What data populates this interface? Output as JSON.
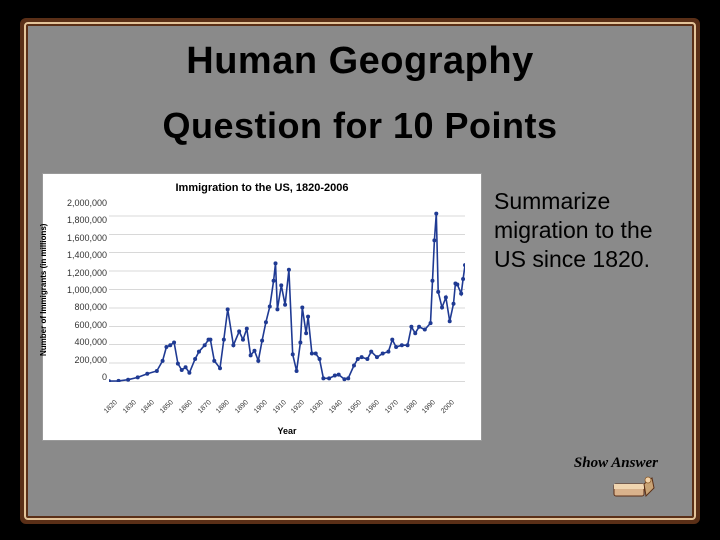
{
  "title": "Human Geography",
  "subtitle": "Question for 10 Points",
  "question": "Summarize migration to the US since 1820.",
  "show_answer_label": "Show Answer",
  "chart": {
    "type": "line",
    "title": "Immigration to the US, 1820-2006",
    "y_axis_title": "Number of Immigrants (in millions)",
    "x_axis_title": "Year",
    "ylim": [
      0,
      2000000
    ],
    "ytick_step": 200000,
    "y_ticks": [
      "2,000,000",
      "1,800,000",
      "1,600,000",
      "1,400,000",
      "1,200,000",
      "1,000,000",
      "800,000",
      "600,000",
      "400,000",
      "200,000",
      "0"
    ],
    "x_ticks": [
      "1820",
      "1830",
      "1840",
      "1850",
      "1860",
      "1870",
      "1880",
      "1890",
      "1900",
      "1910",
      "1920",
      "1930",
      "1940",
      "1950",
      "1960",
      "1970",
      "1980",
      "1990",
      "2000"
    ],
    "line_color": "#1f3a93",
    "line_width": 1.6,
    "marker_color": "#1f3a93",
    "marker_size": 2,
    "background_color": "#ffffff",
    "grid_color": "#d8d8d8",
    "series": [
      {
        "x": 1820,
        "y": 10000
      },
      {
        "x": 1825,
        "y": 12000
      },
      {
        "x": 1830,
        "y": 25000
      },
      {
        "x": 1835,
        "y": 50000
      },
      {
        "x": 1840,
        "y": 90000
      },
      {
        "x": 1845,
        "y": 120000
      },
      {
        "x": 1848,
        "y": 230000
      },
      {
        "x": 1850,
        "y": 380000
      },
      {
        "x": 1852,
        "y": 400000
      },
      {
        "x": 1854,
        "y": 430000
      },
      {
        "x": 1856,
        "y": 200000
      },
      {
        "x": 1858,
        "y": 130000
      },
      {
        "x": 1860,
        "y": 160000
      },
      {
        "x": 1862,
        "y": 100000
      },
      {
        "x": 1865,
        "y": 250000
      },
      {
        "x": 1867,
        "y": 330000
      },
      {
        "x": 1870,
        "y": 400000
      },
      {
        "x": 1872,
        "y": 460000
      },
      {
        "x": 1873,
        "y": 460000
      },
      {
        "x": 1875,
        "y": 230000
      },
      {
        "x": 1878,
        "y": 150000
      },
      {
        "x": 1880,
        "y": 460000
      },
      {
        "x": 1882,
        "y": 790000
      },
      {
        "x": 1885,
        "y": 400000
      },
      {
        "x": 1888,
        "y": 550000
      },
      {
        "x": 1890,
        "y": 460000
      },
      {
        "x": 1892,
        "y": 580000
      },
      {
        "x": 1894,
        "y": 290000
      },
      {
        "x": 1896,
        "y": 340000
      },
      {
        "x": 1898,
        "y": 230000
      },
      {
        "x": 1900,
        "y": 450000
      },
      {
        "x": 1902,
        "y": 650000
      },
      {
        "x": 1904,
        "y": 820000
      },
      {
        "x": 1906,
        "y": 1100000
      },
      {
        "x": 1907,
        "y": 1290000
      },
      {
        "x": 1908,
        "y": 790000
      },
      {
        "x": 1910,
        "y": 1050000
      },
      {
        "x": 1912,
        "y": 840000
      },
      {
        "x": 1914,
        "y": 1220000
      },
      {
        "x": 1916,
        "y": 300000
      },
      {
        "x": 1918,
        "y": 120000
      },
      {
        "x": 1920,
        "y": 430000
      },
      {
        "x": 1921,
        "y": 810000
      },
      {
        "x": 1923,
        "y": 530000
      },
      {
        "x": 1924,
        "y": 710000
      },
      {
        "x": 1926,
        "y": 310000
      },
      {
        "x": 1928,
        "y": 310000
      },
      {
        "x": 1930,
        "y": 250000
      },
      {
        "x": 1932,
        "y": 40000
      },
      {
        "x": 1935,
        "y": 40000
      },
      {
        "x": 1938,
        "y": 70000
      },
      {
        "x": 1940,
        "y": 80000
      },
      {
        "x": 1943,
        "y": 30000
      },
      {
        "x": 1945,
        "y": 40000
      },
      {
        "x": 1948,
        "y": 180000
      },
      {
        "x": 1950,
        "y": 250000
      },
      {
        "x": 1952,
        "y": 270000
      },
      {
        "x": 1955,
        "y": 250000
      },
      {
        "x": 1957,
        "y": 330000
      },
      {
        "x": 1960,
        "y": 270000
      },
      {
        "x": 1963,
        "y": 310000
      },
      {
        "x": 1966,
        "y": 330000
      },
      {
        "x": 1968,
        "y": 460000
      },
      {
        "x": 1970,
        "y": 380000
      },
      {
        "x": 1973,
        "y": 400000
      },
      {
        "x": 1976,
        "y": 400000
      },
      {
        "x": 1978,
        "y": 600000
      },
      {
        "x": 1980,
        "y": 530000
      },
      {
        "x": 1982,
        "y": 600000
      },
      {
        "x": 1985,
        "y": 570000
      },
      {
        "x": 1988,
        "y": 640000
      },
      {
        "x": 1989,
        "y": 1100000
      },
      {
        "x": 1990,
        "y": 1540000
      },
      {
        "x": 1991,
        "y": 1830000
      },
      {
        "x": 1992,
        "y": 980000
      },
      {
        "x": 1994,
        "y": 810000
      },
      {
        "x": 1996,
        "y": 920000
      },
      {
        "x": 1998,
        "y": 660000
      },
      {
        "x": 2000,
        "y": 850000
      },
      {
        "x": 2001,
        "y": 1070000
      },
      {
        "x": 2002,
        "y": 1060000
      },
      {
        "x": 2004,
        "y": 960000
      },
      {
        "x": 2005,
        "y": 1120000
      },
      {
        "x": 2006,
        "y": 1270000
      }
    ]
  },
  "colors": {
    "board_bg": "#8a8a8a",
    "frame_outer": "#5a2f17",
    "frame_inner": "#e4c49a",
    "text": "#000000"
  }
}
